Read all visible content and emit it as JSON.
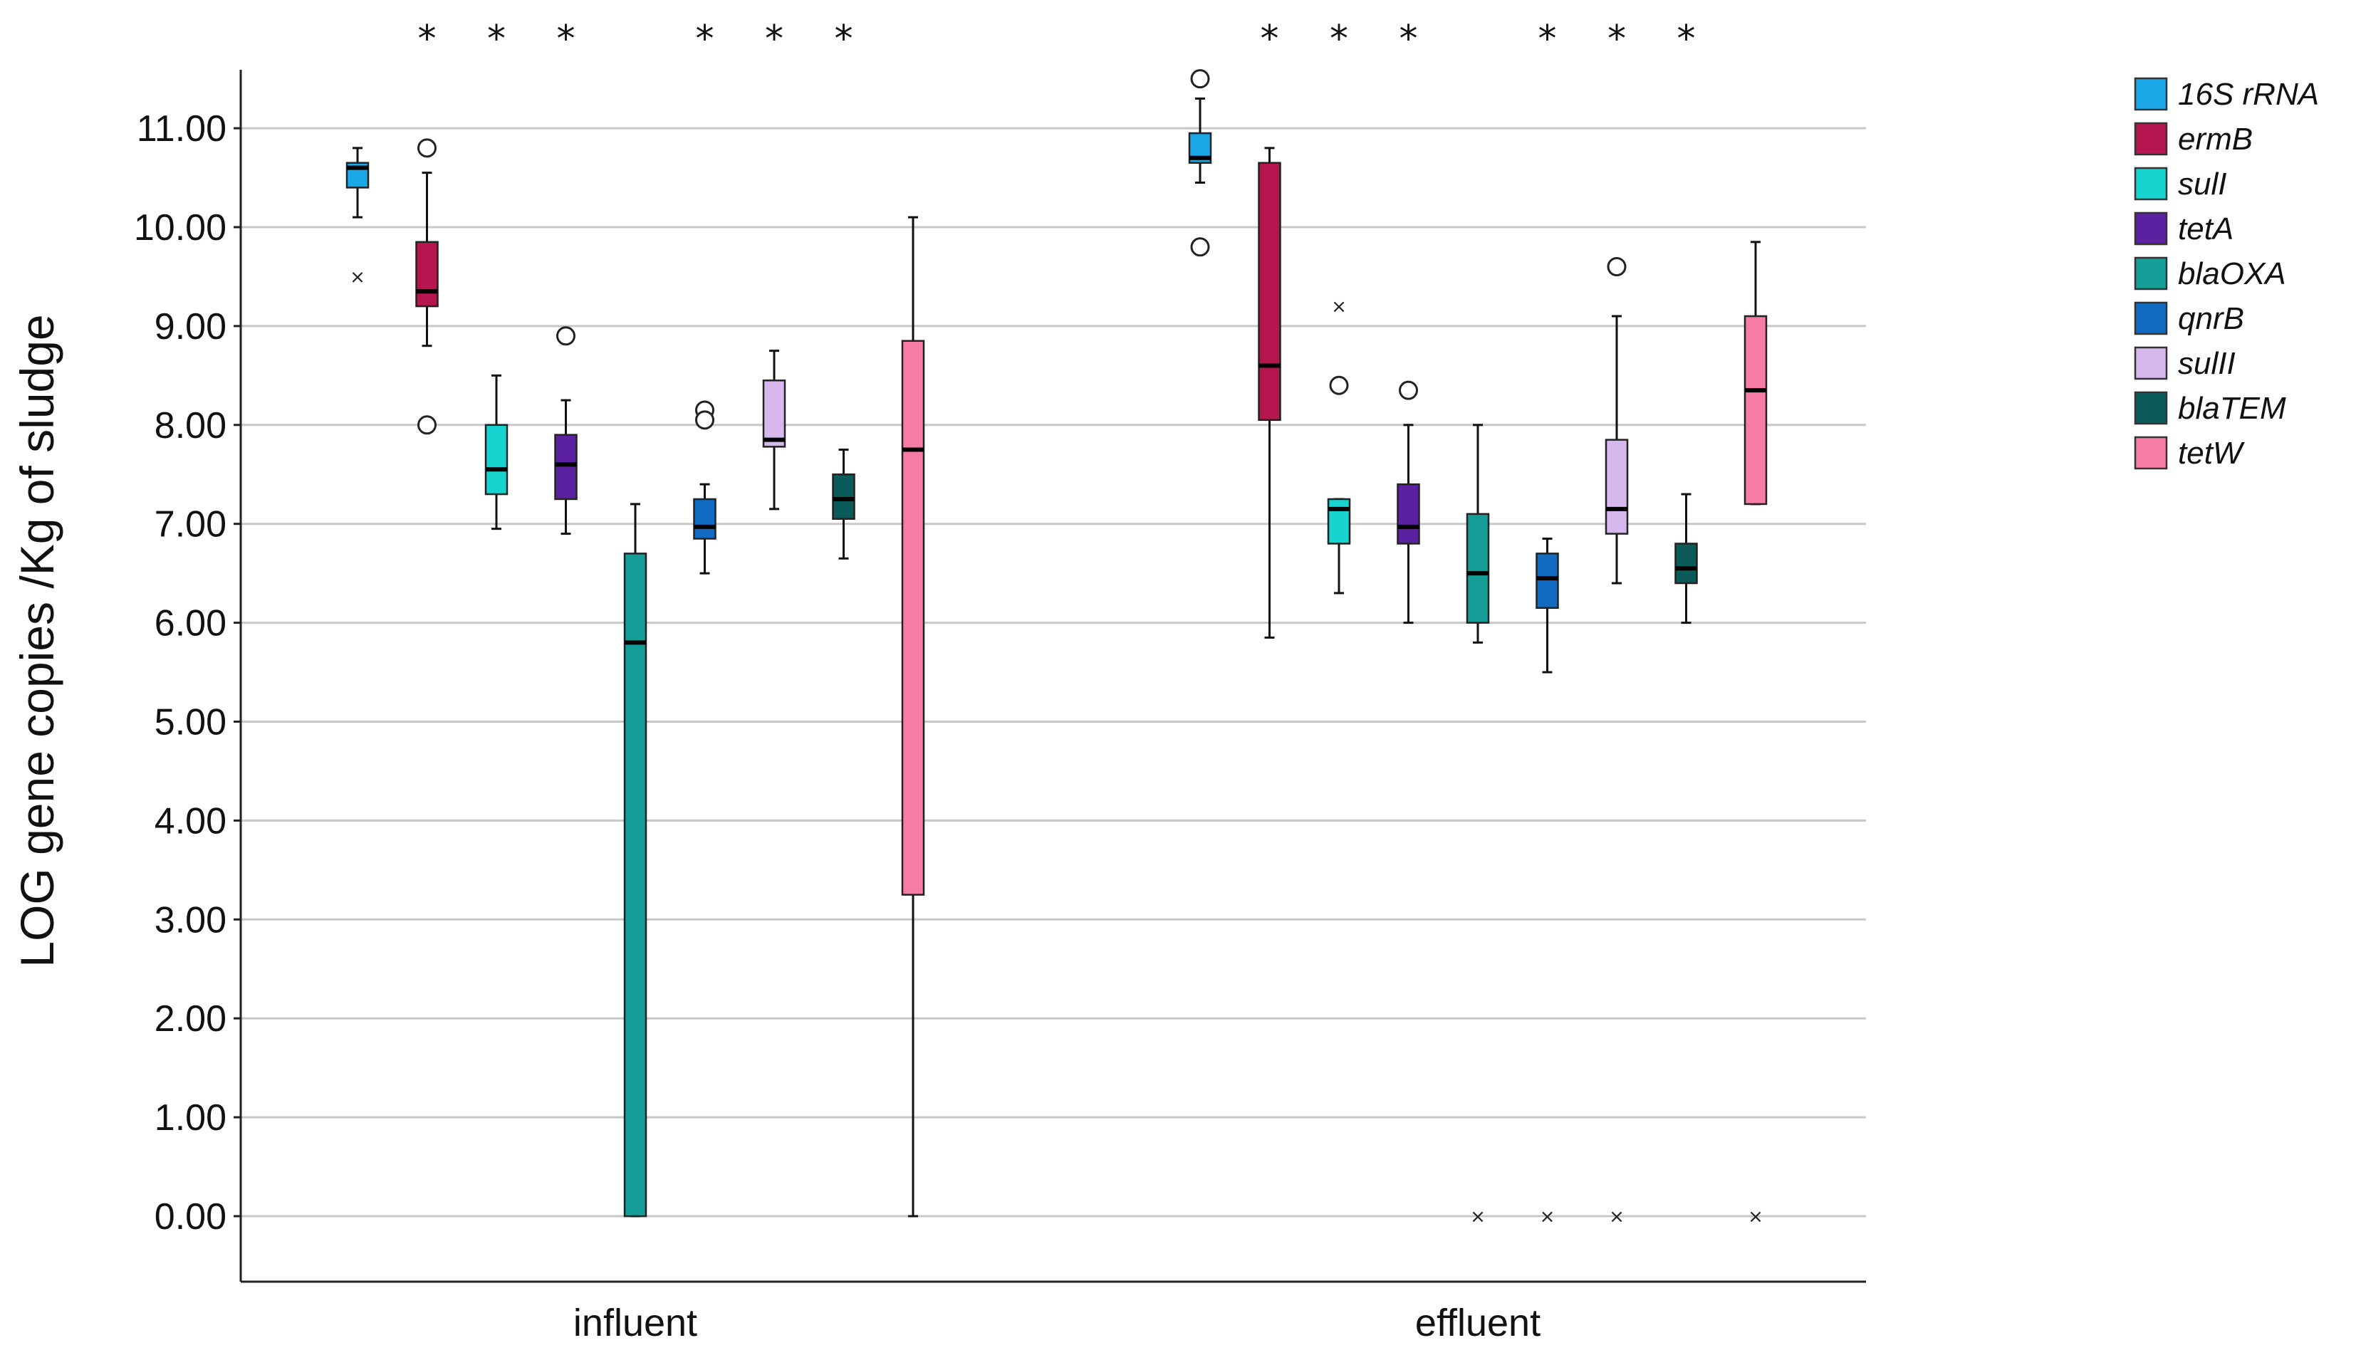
{
  "chart_data": {
    "type": "box",
    "ylabel": "LOG  gene copies /Kg of sludge",
    "ylim": [
      -0.6,
      11.6
    ],
    "yticks": [
      0,
      1,
      2,
      3,
      4,
      5,
      6,
      7,
      8,
      9,
      10,
      11
    ],
    "ytick_labels": [
      "0.00",
      "1.00",
      "2.00",
      "3.00",
      "4.00",
      "5.00",
      "6.00",
      "7.00",
      "8.00",
      "9.00",
      "10.00",
      "11.00"
    ],
    "grid": "horizontal",
    "legend_position": "right",
    "significance_mark": "*",
    "series": [
      {
        "name": "16S rRNA",
        "color": "#1aa7e8"
      },
      {
        "name": "ermB",
        "color": "#b5164f"
      },
      {
        "name": "sulI",
        "color": "#16d3cf"
      },
      {
        "name": "tetA",
        "color": "#5b21a0"
      },
      {
        "name": "blaOXA",
        "color": "#149c96"
      },
      {
        "name": "qnrB",
        "color": "#0f6cc2"
      },
      {
        "name": "sulII",
        "color": "#d6b8ef"
      },
      {
        "name": "blaTEM",
        "color": "#0c5b5b"
      },
      {
        "name": "tetW",
        "color": "#f77ca5"
      }
    ],
    "groups": [
      {
        "category": "influent",
        "significant": [
          false,
          true,
          true,
          true,
          false,
          true,
          true,
          true,
          false
        ],
        "boxes": [
          {
            "min": 10.1,
            "q1": 10.4,
            "median": 10.6,
            "q3": 10.65,
            "max": 10.8,
            "outliers_circle": [],
            "outliers_cross": [
              9.5
            ]
          },
          {
            "min": 8.8,
            "q1": 9.2,
            "median": 9.35,
            "q3": 9.85,
            "max": 10.55,
            "outliers_circle": [
              10.8,
              8.0
            ],
            "outliers_cross": []
          },
          {
            "min": 6.95,
            "q1": 7.3,
            "median": 7.55,
            "q3": 8.0,
            "max": 8.5,
            "outliers_circle": [],
            "outliers_cross": []
          },
          {
            "min": 6.9,
            "q1": 7.25,
            "median": 7.6,
            "q3": 7.9,
            "max": 8.25,
            "outliers_circle": [
              8.9
            ],
            "outliers_cross": []
          },
          {
            "min": 0.0,
            "q1": 0.0,
            "median": 5.8,
            "q3": 6.7,
            "max": 7.2,
            "outliers_circle": [],
            "outliers_cross": []
          },
          {
            "min": 6.5,
            "q1": 6.85,
            "median": 6.97,
            "q3": 7.25,
            "max": 7.4,
            "outliers_circle": [
              8.15,
              8.05
            ],
            "outliers_cross": []
          },
          {
            "min": 7.15,
            "q1": 7.78,
            "median": 7.85,
            "q3": 8.45,
            "max": 8.75,
            "outliers_circle": [],
            "outliers_cross": []
          },
          {
            "min": 6.65,
            "q1": 7.05,
            "median": 7.25,
            "q3": 7.5,
            "max": 7.75,
            "outliers_circle": [],
            "outliers_cross": []
          },
          {
            "min": 0.0,
            "q1": 3.25,
            "median": 7.75,
            "q3": 8.85,
            "max": 10.1,
            "outliers_circle": [],
            "outliers_cross": []
          }
        ]
      },
      {
        "category": "effluent",
        "significant": [
          false,
          true,
          true,
          true,
          false,
          true,
          true,
          true,
          false
        ],
        "boxes": [
          {
            "min": 10.45,
            "q1": 10.65,
            "median": 10.7,
            "q3": 10.95,
            "max": 11.3,
            "outliers_circle": [
              11.5,
              9.8
            ],
            "outliers_cross": []
          },
          {
            "min": 5.85,
            "q1": 8.05,
            "median": 8.6,
            "q3": 10.65,
            "max": 10.8,
            "outliers_circle": [],
            "outliers_cross": []
          },
          {
            "min": 6.3,
            "q1": 6.8,
            "median": 7.15,
            "q3": 7.25,
            "max": 7.25,
            "outliers_circle": [
              8.4
            ],
            "outliers_cross": [
              9.2
            ]
          },
          {
            "min": 6.0,
            "q1": 6.8,
            "median": 6.97,
            "q3": 7.4,
            "max": 8.0,
            "outliers_circle": [
              8.35
            ],
            "outliers_cross": []
          },
          {
            "min": 5.8,
            "q1": 6.0,
            "median": 6.5,
            "q3": 7.1,
            "max": 8.0,
            "outliers_circle": [],
            "outliers_cross": [
              0.0
            ]
          },
          {
            "min": 5.5,
            "q1": 6.15,
            "median": 6.45,
            "q3": 6.7,
            "max": 6.85,
            "outliers_circle": [],
            "outliers_cross": [
              0.0
            ]
          },
          {
            "min": 6.4,
            "q1": 6.9,
            "median": 7.15,
            "q3": 7.85,
            "max": 9.1,
            "outliers_circle": [
              9.6
            ],
            "outliers_cross": [
              0.0
            ]
          },
          {
            "min": 6.0,
            "q1": 6.4,
            "median": 6.55,
            "q3": 6.8,
            "max": 7.3,
            "outliers_circle": [],
            "outliers_cross": []
          },
          {
            "min": 7.2,
            "q1": 7.2,
            "median": 8.35,
            "q3": 9.1,
            "max": 9.85,
            "outliers_circle": [],
            "outliers_cross": [
              0.0
            ]
          }
        ]
      }
    ]
  }
}
